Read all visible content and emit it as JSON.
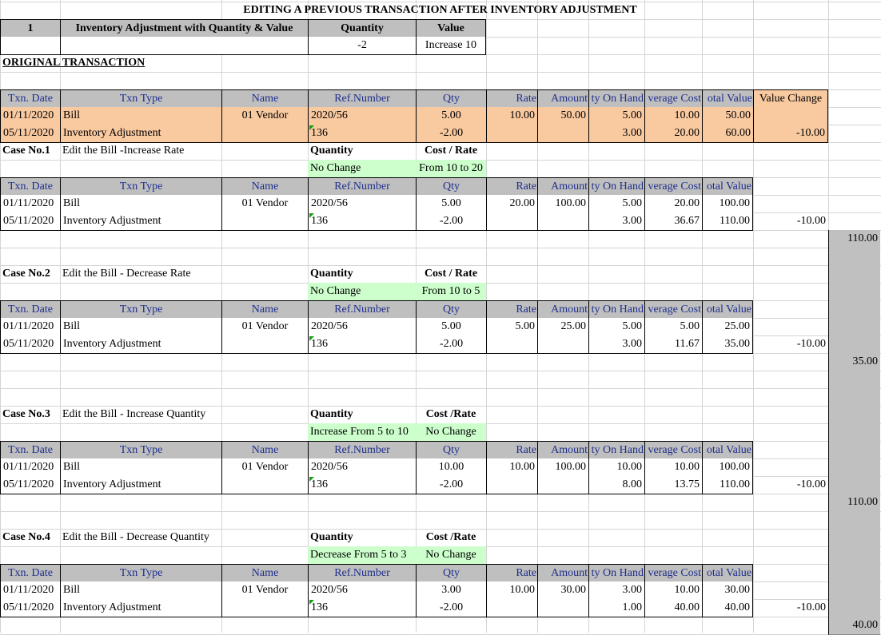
{
  "title": "EDITING A PREVIOUS TRANSACTION AFTER INVENTORY ADJUSTMENT",
  "top_table": {
    "headers": [
      "1",
      "Inventory Adjustment with Quantity & Value",
      "Quantity",
      "Value"
    ],
    "values": [
      "-2",
      "Increase 10"
    ]
  },
  "original_label": "ORIGINAL TRANSACTION",
  "columns": {
    "full": [
      "Txn. Date",
      "Txn Type",
      "Name",
      "Ref.Number",
      "Qty",
      "Rate",
      "Amount",
      "ty On Hand",
      "verage Cost",
      "otal Value",
      "Value Change"
    ],
    "case": [
      "Txn. Date",
      "Txn Type",
      "Name",
      "Ref.Number",
      "Qty",
      "Rate",
      "Amount",
      "ty On Hand",
      "verage Cost",
      "otal Value"
    ]
  },
  "original_rows": [
    [
      "01/11/2020",
      "Bill",
      "01 Vendor",
      "2020/56",
      "5.00",
      "10.00",
      "50.00",
      "5.00",
      "10.00",
      "50.00",
      ""
    ],
    [
      "05/11/2020",
      "Inventory Adjustment",
      "",
      "136",
      "-2.00",
      "",
      "",
      "3.00",
      "20.00",
      "60.00",
      "-10.00"
    ]
  ],
  "case_headers": {
    "quantity": "Quantity",
    "cost": "Cost / Rate",
    "cost_alt": "Cost /Rate"
  },
  "cases": [
    {
      "no": "Case No.1",
      "desc": "Edit the Bill -Increase Rate",
      "qty_note": "No Change",
      "cost_note": "From 10 to 20",
      "rows": [
        [
          "01/11/2020",
          "Bill",
          "01 Vendor",
          "2020/56",
          "5.00",
          "20.00",
          "100.00",
          "5.00",
          "20.00",
          "100.00"
        ],
        [
          "05/11/2020",
          "Inventory Adjustment",
          "",
          "136",
          "-2.00",
          "",
          "",
          "3.00",
          "36.67",
          "110.00"
        ]
      ],
      "change": "-10.00",
      "result": "110.00"
    },
    {
      "no": "Case No.2",
      "desc": "Edit the Bill - Decrease Rate",
      "qty_note": "No Change",
      "cost_note": "From 10 to 5",
      "rows": [
        [
          "01/11/2020",
          "Bill",
          "01 Vendor",
          "2020/56",
          "5.00",
          "5.00",
          "25.00",
          "5.00",
          "5.00",
          "25.00"
        ],
        [
          "05/11/2020",
          "Inventory Adjustment",
          "",
          "136",
          "-2.00",
          "",
          "",
          "3.00",
          "11.67",
          "35.00"
        ]
      ],
      "change": "-10.00",
      "result": "35.00"
    },
    {
      "no": "Case No.3",
      "desc": "Edit the Bill - Increase Quantity",
      "qty_note": "Increase From 5 to 10",
      "cost_note": "No Change",
      "rows": [
        [
          "01/11/2020",
          "Bill",
          "01 Vendor",
          "2020/56",
          "10.00",
          "10.00",
          "100.00",
          "10.00",
          "10.00",
          "100.00"
        ],
        [
          "05/11/2020",
          "Inventory Adjustment",
          "",
          "136",
          "-2.00",
          "",
          "",
          "8.00",
          "13.75",
          "110.00"
        ]
      ],
      "change": "-10.00",
      "result": "110.00"
    },
    {
      "no": "Case No.4",
      "desc": "Edit the Bill - Decrease Quantity",
      "qty_note": "Decrease From 5 to 3",
      "cost_note": "No Change",
      "rows": [
        [
          "01/11/2020",
          "Bill",
          "01 Vendor",
          "2020/56",
          "3.00",
          "10.00",
          "30.00",
          "3.00",
          "10.00",
          "30.00"
        ],
        [
          "05/11/2020",
          "Inventory Adjustment",
          "",
          "136",
          "-2.00",
          "",
          "",
          "1.00",
          "40.00",
          "40.00"
        ]
      ],
      "change": "-10.00",
      "result": "40.00"
    }
  ],
  "colors": {
    "header": "#bfbfbf",
    "original": "#f9c9a0",
    "note": "#ccffcc",
    "side": "#c0c0c0",
    "header_text": "#1f2f8c"
  }
}
